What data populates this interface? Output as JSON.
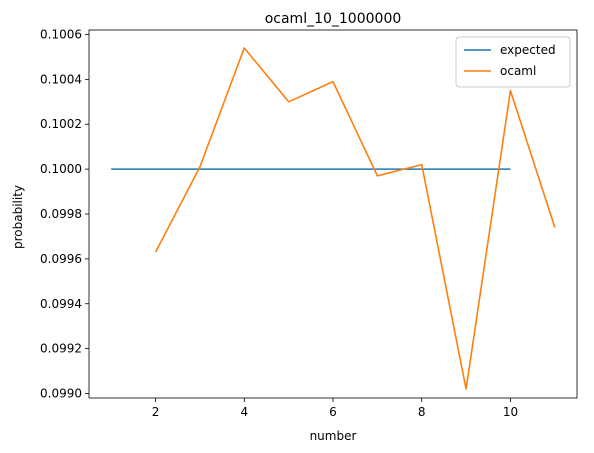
{
  "chart_data": {
    "type": "line",
    "title": "ocaml_10_1000000",
    "xlabel": "number",
    "ylabel": "probability",
    "xlim": [
      0.5,
      11.5
    ],
    "ylim": [
      0.09898,
      0.10062
    ],
    "xticks": [
      2,
      4,
      6,
      8,
      10
    ],
    "yticks": [
      0.099,
      0.0992,
      0.0994,
      0.0996,
      0.0998,
      0.1,
      0.1002,
      0.1004,
      0.1006
    ],
    "ytick_labels": [
      "0.0990",
      "0.0992",
      "0.0994",
      "0.0996",
      "0.0998",
      "0.1000",
      "0.1002",
      "0.1004",
      "0.1006"
    ],
    "grid": false,
    "legend_position": "top-right",
    "series": [
      {
        "name": "expected",
        "color": "#1f77b4",
        "x": [
          1,
          2,
          3,
          4,
          5,
          6,
          7,
          8,
          9,
          10
        ],
        "y": [
          0.1,
          0.1,
          0.1,
          0.1,
          0.1,
          0.1,
          0.1,
          0.1,
          0.1,
          0.1
        ]
      },
      {
        "name": "ocaml",
        "color": "#ff7f0e",
        "x": [
          2,
          3,
          4,
          5,
          6,
          7,
          8,
          9,
          10,
          11
        ],
        "y": [
          0.09963,
          0.10001,
          0.10054,
          0.1003,
          0.10039,
          0.09997,
          0.10002,
          0.09902,
          0.10035,
          0.09974
        ]
      }
    ]
  }
}
